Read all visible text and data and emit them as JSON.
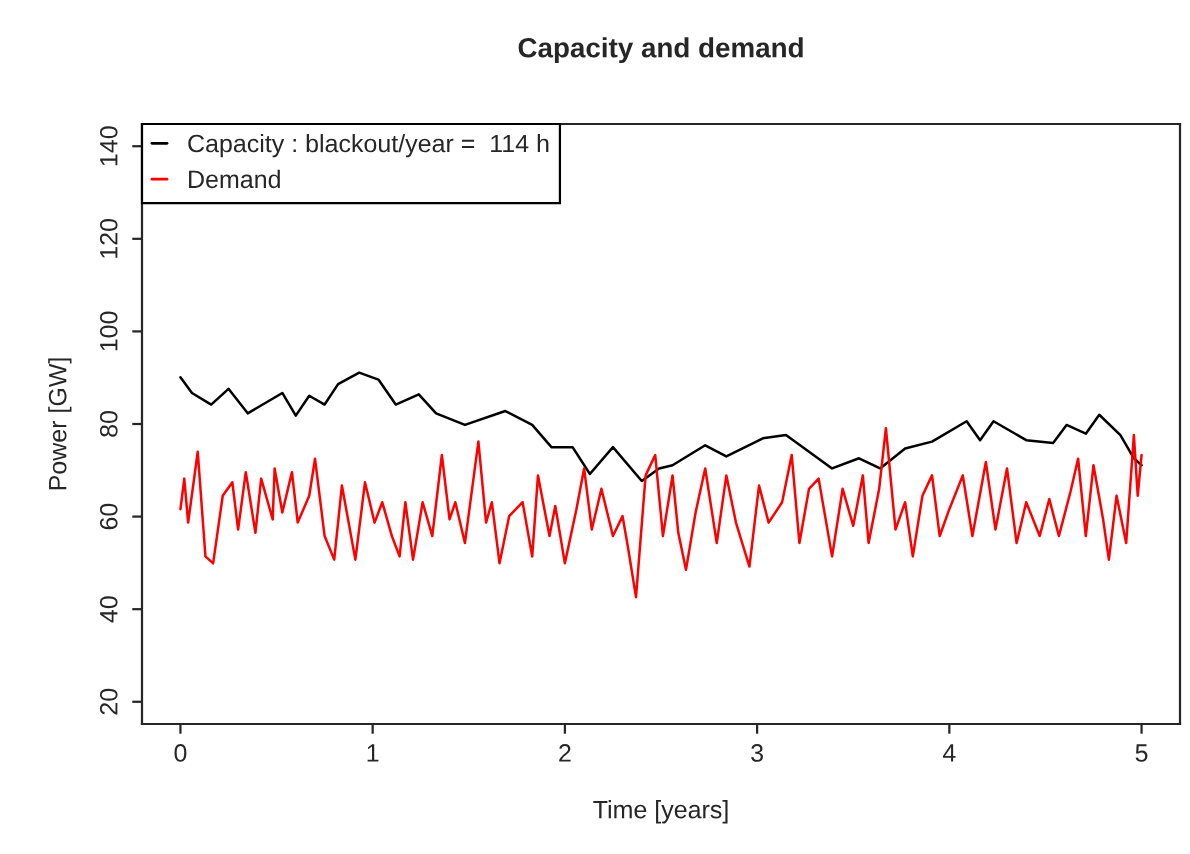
{
  "chart_data": {
    "type": "line",
    "title": "Capacity and demand",
    "xlabel": "Time [years]",
    "ylabel": "Power [GW]",
    "xlim": [
      -0.2,
      5.2
    ],
    "xticks": [
      0,
      1,
      2,
      3,
      4,
      5
    ],
    "ylim": [
      15.2,
      144.8
    ],
    "yticks": [
      20,
      40,
      60,
      80,
      100,
      120,
      140
    ],
    "grid": false,
    "legend": "top left",
    "marker": "none",
    "line_style": "solid",
    "series": [
      {
        "name": "Capacity : blackout/year =  114 h",
        "color": "#000000",
        "x": [
          0.0,
          0.06,
          0.16,
          0.25,
          0.35,
          0.53,
          0.6,
          0.67,
          0.75,
          0.82,
          0.93,
          1.03,
          1.12,
          1.24,
          1.33,
          1.48,
          1.69,
          1.83,
          1.93,
          2.04,
          2.13,
          2.25,
          2.4,
          2.49,
          2.56,
          2.73,
          2.84,
          3.03,
          3.15,
          3.39,
          3.53,
          3.64,
          3.77,
          3.91,
          4.09,
          4.16,
          4.23,
          4.4,
          4.54,
          4.61,
          4.71,
          4.78,
          4.89,
          4.96,
          5.0
        ],
        "values": [
          90.1,
          86.7,
          84.2,
          87.6,
          82.3,
          86.7,
          81.8,
          86.1,
          84.2,
          88.6,
          91.1,
          89.6,
          84.2,
          86.4,
          82.3,
          79.8,
          82.8,
          79.8,
          75.0,
          75.0,
          69.2,
          75.0,
          67.7,
          70.4,
          71.1,
          75.4,
          73.0,
          76.9,
          77.6,
          70.4,
          72.6,
          70.4,
          74.7,
          76.2,
          80.6,
          76.5,
          80.6,
          76.5,
          75.9,
          79.8,
          77.9,
          82.0,
          77.6,
          72.6,
          71.1
        ]
      },
      {
        "name": "Demand",
        "color": "#ff0000",
        "x": [
          0.0,
          0.02,
          0.04,
          0.09,
          0.13,
          0.17,
          0.22,
          0.27,
          0.3,
          0.34,
          0.39,
          0.42,
          0.48,
          0.49,
          0.53,
          0.58,
          0.61,
          0.67,
          0.7,
          0.75,
          0.8,
          0.84,
          0.91,
          0.96,
          1.01,
          1.05,
          1.1,
          1.14,
          1.17,
          1.21,
          1.26,
          1.31,
          1.36,
          1.4,
          1.43,
          1.48,
          1.55,
          1.59,
          1.62,
          1.66,
          1.71,
          1.78,
          1.83,
          1.86,
          1.92,
          1.95,
          2.0,
          2.06,
          2.1,
          2.14,
          2.19,
          2.25,
          2.3,
          2.33,
          2.37,
          2.42,
          2.47,
          2.51,
          2.56,
          2.59,
          2.63,
          2.68,
          2.73,
          2.79,
          2.84,
          2.89,
          2.96,
          3.01,
          3.06,
          3.13,
          3.18,
          3.22,
          3.27,
          3.32,
          3.39,
          3.445,
          3.5,
          3.55,
          3.58,
          3.635,
          3.67,
          3.72,
          3.77,
          3.81,
          3.86,
          3.91,
          3.95,
          4.0,
          4.07,
          4.12,
          4.19,
          4.24,
          4.3,
          4.35,
          4.4,
          4.47,
          4.52,
          4.57,
          4.63,
          4.67,
          4.71,
          4.75,
          4.8,
          4.83,
          4.87,
          4.92,
          4.96,
          4.98,
          5.0
        ],
        "values": [
          61.6,
          68.2,
          58.7,
          74.0,
          51.4,
          49.9,
          64.5,
          67.4,
          57.2,
          69.6,
          56.5,
          68.2,
          59.4,
          70.4,
          60.9,
          69.6,
          58.7,
          64.5,
          72.5,
          55.8,
          50.7,
          66.7,
          50.7,
          67.4,
          58.7,
          63.1,
          55.8,
          51.4,
          63.1,
          50.7,
          63.1,
          55.8,
          73.3,
          59.4,
          63.1,
          54.3,
          76.2,
          58.7,
          63.1,
          49.9,
          60.1,
          63.1,
          51.4,
          68.9,
          55.8,
          62.3,
          49.9,
          61.6,
          70.4,
          57.2,
          66.0,
          55.8,
          60.1,
          52.9,
          42.6,
          68.9,
          73.3,
          55.8,
          68.9,
          56.5,
          48.5,
          60.9,
          70.4,
          54.3,
          68.9,
          58.7,
          49.2,
          66.7,
          58.7,
          63.1,
          73.3,
          54.3,
          66.0,
          68.2,
          51.4,
          66.0,
          58.0,
          68.9,
          54.3,
          66.0,
          79.1,
          57.2,
          63.1,
          51.4,
          64.5,
          68.9,
          55.8,
          61.6,
          68.9,
          55.8,
          71.8,
          57.2,
          70.4,
          54.3,
          63.1,
          55.8,
          63.8,
          55.8,
          65.3,
          72.5,
          55.8,
          71.1,
          59.4,
          50.7,
          64.5,
          54.3,
          77.6,
          64.5,
          73.3
        ]
      }
    ]
  }
}
